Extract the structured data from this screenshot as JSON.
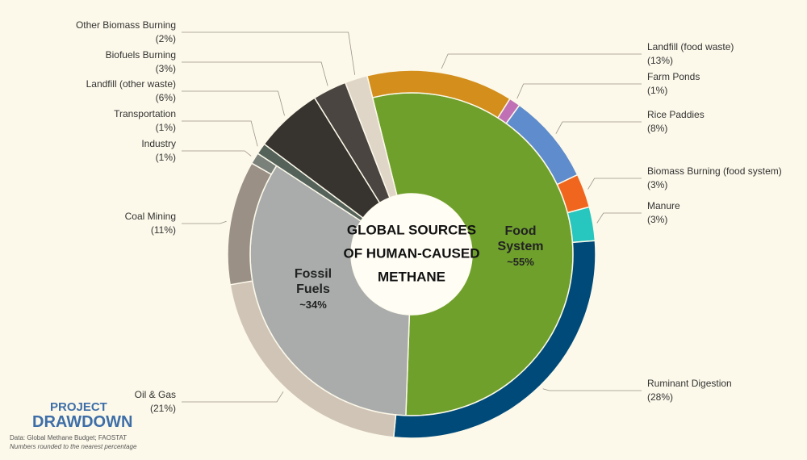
{
  "chart_data": {
    "type": "donut",
    "title": [
      "GLOBAL SOURCES",
      "OF HUMAN-CAUSED",
      "METHANE"
    ],
    "categories": [
      "Landfill (food waste)",
      "Farm Ponds",
      "Rice Paddies",
      "Biomass Burning (food system)",
      "Manure",
      "Ruminant Digestion",
      "Oil & Gas",
      "Coal Mining",
      "Industry",
      "Transportation",
      "Landfill (other waste)",
      "Biofuels Burning",
      "Other Biomass Burning"
    ],
    "values": [
      13,
      1,
      8,
      3,
      3,
      28,
      21,
      11,
      1,
      1,
      6,
      3,
      2
    ],
    "value_labels": [
      "(13%)",
      "(1%)",
      "(8%)",
      "(3%)",
      "(3%)",
      "(28%)",
      "(21%)",
      "(11%)",
      "(1%)",
      "(1%)",
      "(6%)",
      "(3%)",
      "(2%)"
    ],
    "colors": [
      "#d38e1b",
      "#c071b5",
      "#5f8ccc",
      "#f0661f",
      "#27c6bf",
      "#004a7a",
      "#d0c4b6",
      "#9a9086",
      "#7a807a",
      "#55625a",
      "#37332e",
      "#4a4540",
      "#e0d6c8"
    ],
    "groups": {
      "categories": [
        "Food System",
        "Fossil Fuels"
      ],
      "values": [
        55,
        34
      ],
      "value_labels": [
        "~55%",
        "~34%"
      ],
      "colors": [
        "#6fa02c",
        "#a9acab"
      ]
    },
    "logo": [
      "PROJECT",
      "DRAWDOWN"
    ],
    "source": "Data: Global Methane Budget; FAOSTAT",
    "note": "Numbers rounded to the nearest percentage"
  }
}
